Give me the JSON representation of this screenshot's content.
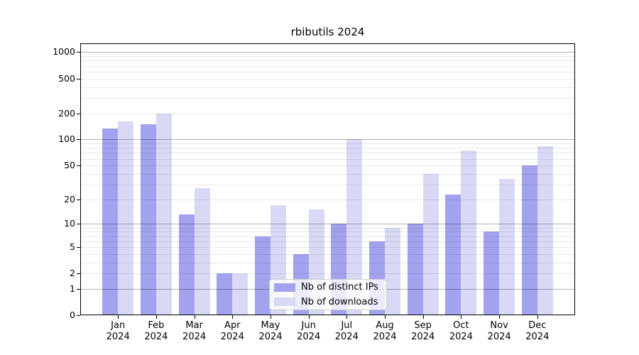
{
  "chart_data": {
    "type": "bar",
    "title": "rbibutils 2024",
    "categories": [
      "Jan 2024",
      "Feb 2024",
      "Mar 2024",
      "Apr 2024",
      "May 2024",
      "Jun 2024",
      "Jul 2024",
      "Aug 2024",
      "Sep 2024",
      "Oct 2024",
      "Nov 2024",
      "Dec 2024"
    ],
    "series": [
      {
        "name": "Nb of distinct IPs",
        "color": "#a2a2ee",
        "values": [
          133,
          150,
          13,
          2,
          7,
          4,
          10,
          6,
          10,
          23,
          8,
          50
        ]
      },
      {
        "name": "Nb of downloads",
        "color": "#d9d9f6",
        "values": [
          160,
          200,
          27,
          2,
          17,
          15,
          100,
          9,
          40,
          75,
          35,
          84
        ]
      }
    ],
    "yscale": "log1p",
    "ylim": [
      0,
      1260
    ],
    "y_ticks_labeled": [
      "0",
      "1",
      "2",
      "5",
      "10",
      "20",
      "50",
      "100",
      "200",
      "500",
      "1000"
    ],
    "grid": {
      "major": [
        1,
        10,
        100,
        1000
      ],
      "minor": [
        2,
        3,
        4,
        5,
        6,
        7,
        8,
        9,
        20,
        30,
        40,
        50,
        60,
        70,
        80,
        90,
        200,
        300,
        400,
        500,
        600,
        700,
        800,
        900
      ]
    },
    "legend_position": "lower center",
    "xlabel": "",
    "ylabel": ""
  }
}
